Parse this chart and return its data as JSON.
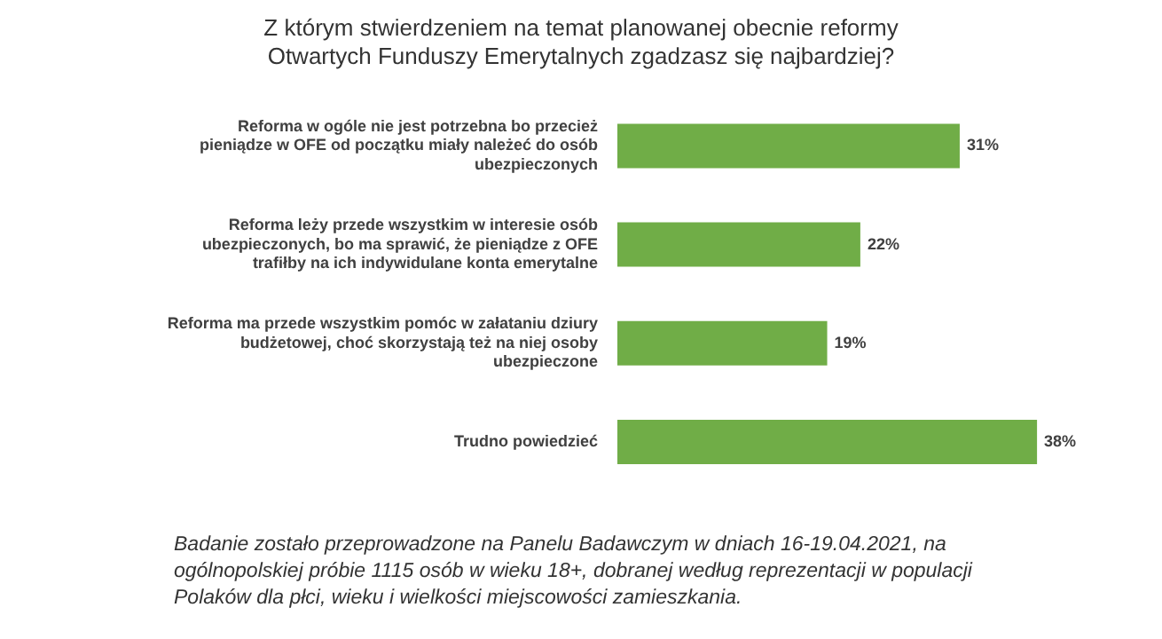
{
  "chart_data": {
    "type": "bar",
    "orientation": "horizontal",
    "title": "Z którym stwierdzeniem na temat planowanej obecnie reformy Otwartych Funduszy Emerytalnych zgadzasz się najbardziej?",
    "categories": [
      "Reforma w ogóle nie jest potrzebna bo przecież pieniądze w OFE od początku miały należeć do osób ubezpieczonych",
      "Reforma leży przede wszystkim w interesie osób ubezpieczonych, bo ma sprawić, że pieniądze z OFE trafiłby na ich indywidulane konta emerytalne",
      "Reforma ma przede wszystkim pomóc w załataniu dziury budżetowej, choć skorzystają też na niej osoby ubezpieczone",
      "Trudno powiedzieć"
    ],
    "values": [
      31,
      22,
      19,
      38
    ],
    "value_labels": [
      "31%",
      "22%",
      "19%",
      "38%"
    ],
    "color": "#70ad47",
    "annotations": [
      "Badanie zostało przeprowadzone na Panelu Badawczym w dniach 16-19.04.2021, na ogólnopolskiej próbie 1115 osób w wieku 18+, dobranej według reprezentacji w populacji Polaków dla płci, wieku i wielkości miejscowości zamieszkania."
    ]
  }
}
